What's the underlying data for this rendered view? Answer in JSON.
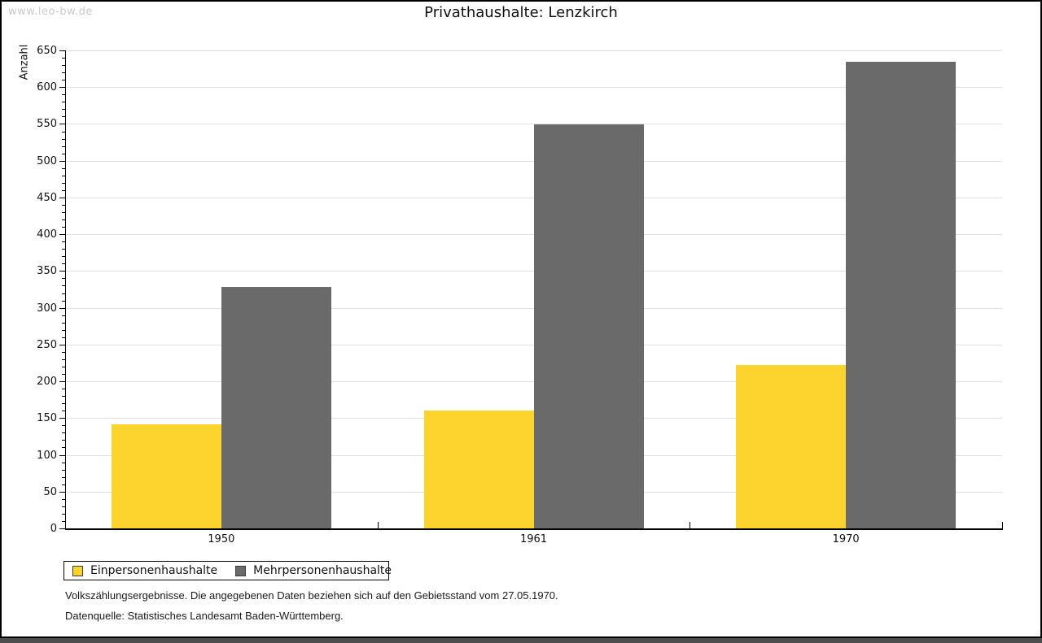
{
  "page": {
    "watermark": "www.leo-bw.de",
    "footnote1": "Volkszählungsergebnisse. Die angegebenen Daten beziehen sich auf den Gebietsstand vom 27.05.1970.",
    "footnote2": "Datenquelle: Statistisches Landesamt Baden-Württemberg."
  },
  "chart_data": {
    "type": "bar",
    "title": "Privathaushalte: Lenzkirch",
    "ylabel": "Anzahl",
    "categories": [
      "1950",
      "1961",
      "1970"
    ],
    "series": [
      {
        "name": "Einpersonenhaushalte",
        "color": "#FCD42D",
        "values": [
          142,
          160,
          222
        ]
      },
      {
        "name": "Mehrpersonenhaushalte",
        "color": "#6A6A6A",
        "values": [
          328,
          549,
          635
        ]
      }
    ],
    "ylim": [
      0,
      650
    ],
    "ytick_step": 50,
    "minor_tick_step": 10,
    "grid": true,
    "legend_position": "bottom-left",
    "colors": {
      "gridline": "#E0E0E0",
      "axis": "#000000",
      "watermark": "#C9C9C9",
      "bottom_strip": "#4D4D4D"
    }
  }
}
